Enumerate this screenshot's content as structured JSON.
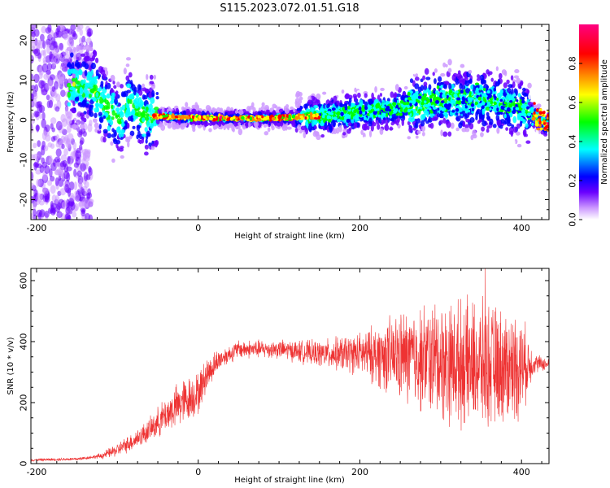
{
  "title": "S115.2023.072.01.51.G18",
  "colors": {
    "snr_line": "#ee3333",
    "background": "#ffffff",
    "axis": "#000000",
    "colormap_stops": [
      "#ffffff",
      "#cc99ff",
      "#6a00ff",
      "#0000ff",
      "#00ffff",
      "#00ff00",
      "#ffff00",
      "#ff8800",
      "#ff0000",
      "#ff0080"
    ]
  },
  "chart_data": [
    {
      "type": "heatmap",
      "xlabel": "Height of straight line (km)",
      "ylabel": "Frequency (Hz)",
      "xlim": [
        -207,
        434
      ],
      "ylim": [
        -25,
        24
      ],
      "xticks": [
        -200,
        0,
        200,
        400
      ],
      "yticks": [
        -20,
        -10,
        0,
        10,
        20
      ],
      "colorbar": {
        "label": "Normalized spectral amplitude",
        "range": [
          0,
          1
        ],
        "ticks": [
          "0.0",
          "0.2",
          "0.4",
          "0.6",
          "0.8"
        ]
      },
      "ridge": {
        "description_points": [
          {
            "x": -150,
            "y": 9
          },
          {
            "x": -130,
            "y": 8
          },
          {
            "x": -110,
            "y": 2
          },
          {
            "x": -95,
            "y": 0
          },
          {
            "x": -85,
            "y": 5
          },
          {
            "x": -70,
            "y": 1
          },
          {
            "x": -55,
            "y": 1
          },
          {
            "x": 0,
            "y": 0.5
          },
          {
            "x": 100,
            "y": 0.5
          },
          {
            "x": 150,
            "y": 1
          },
          {
            "x": 200,
            "y": 2
          },
          {
            "x": 250,
            "y": 3
          },
          {
            "x": 300,
            "y": 5
          },
          {
            "x": 350,
            "y": 5
          },
          {
            "x": 400,
            "y": 3
          },
          {
            "x": 430,
            "y": -1
          }
        ]
      }
    },
    {
      "type": "line",
      "xlabel": "Height of straight line (km)",
      "ylabel": "SNR (10 * v/v)",
      "xlim": [
        -207,
        434
      ],
      "ylim": [
        0,
        640
      ],
      "xticks": [
        -200,
        0,
        200,
        400
      ],
      "yticks": [
        0,
        200,
        400,
        600
      ],
      "series": [
        {
          "trend": [
            {
              "x": -207,
              "y": 12
            },
            {
              "x": -150,
              "y": 15
            },
            {
              "x": -120,
              "y": 25
            },
            {
              "x": -100,
              "y": 45
            },
            {
              "x": -80,
              "y": 75
            },
            {
              "x": -60,
              "y": 110
            },
            {
              "x": -40,
              "y": 160
            },
            {
              "x": -20,
              "y": 200
            },
            {
              "x": 0,
              "y": 230
            },
            {
              "x": 10,
              "y": 290
            },
            {
              "x": 25,
              "y": 340
            },
            {
              "x": 50,
              "y": 375
            },
            {
              "x": 100,
              "y": 375
            },
            {
              "x": 150,
              "y": 360
            },
            {
              "x": 200,
              "y": 360
            },
            {
              "x": 250,
              "y": 350
            },
            {
              "x": 300,
              "y": 340
            },
            {
              "x": 350,
              "y": 320
            },
            {
              "x": 400,
              "y": 320
            },
            {
              "x": 415,
              "y": 330
            },
            {
              "x": 434,
              "y": 325
            }
          ],
          "noise_amplitude": [
            {
              "x": -207,
              "y": 5
            },
            {
              "x": -130,
              "y": 6
            },
            {
              "x": -100,
              "y": 25
            },
            {
              "x": -60,
              "y": 45
            },
            {
              "x": -20,
              "y": 90
            },
            {
              "x": 0,
              "y": 80
            },
            {
              "x": 30,
              "y": 35
            },
            {
              "x": 100,
              "y": 35
            },
            {
              "x": 150,
              "y": 50
            },
            {
              "x": 200,
              "y": 80
            },
            {
              "x": 250,
              "y": 170
            },
            {
              "x": 300,
              "y": 230
            },
            {
              "x": 350,
              "y": 240
            },
            {
              "x": 400,
              "y": 200
            },
            {
              "x": 415,
              "y": 40
            },
            {
              "x": 434,
              "y": 20
            }
          ],
          "peak": {
            "x": 355,
            "y": 640
          }
        }
      ]
    }
  ]
}
